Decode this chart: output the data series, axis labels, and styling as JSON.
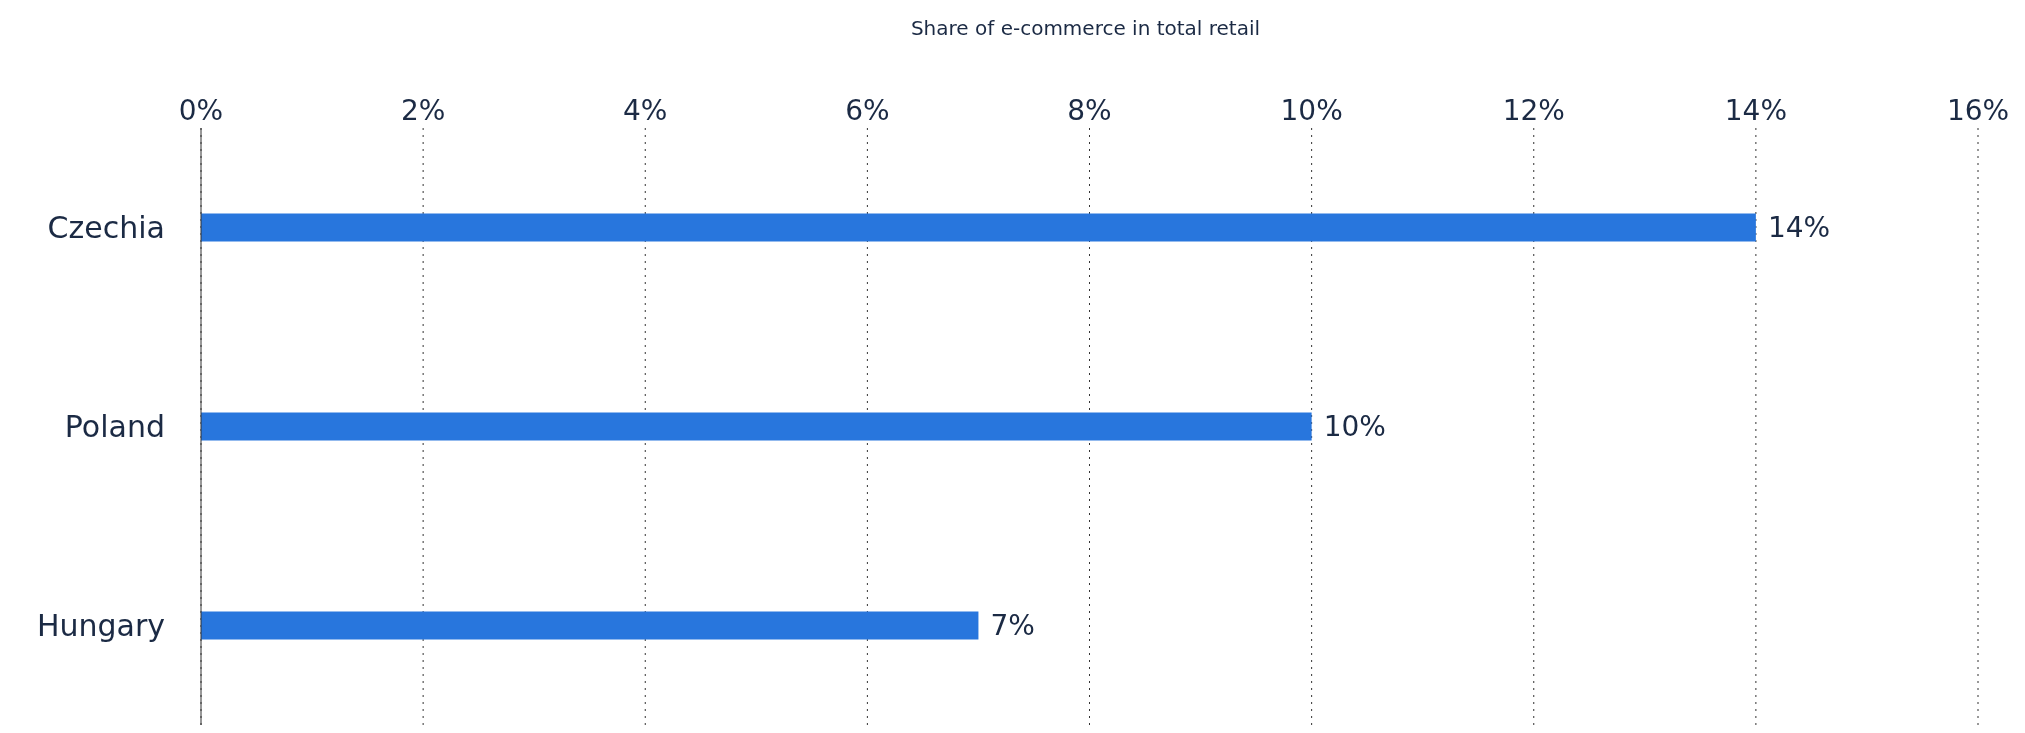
{
  "chart_data": {
    "type": "bar",
    "orientation": "horizontal",
    "xlabel": "Share of e-commerce in total retail",
    "categories": [
      "Czechia",
      "Poland",
      "Hungary"
    ],
    "values": [
      14,
      10,
      7
    ],
    "color": "#2876dd",
    "value_labels": [
      "14%",
      "10%",
      "7%"
    ],
    "xlim": [
      0,
      16
    ],
    "xticks": [
      {
        "value": 0,
        "label": "0%"
      },
      {
        "value": 2,
        "label": "2%"
      },
      {
        "value": 4,
        "label": "4%"
      },
      {
        "value": 6,
        "label": "6%"
      },
      {
        "value": 8,
        "label": "8%"
      },
      {
        "value": 10,
        "label": "10%"
      },
      {
        "value": 12,
        "label": "12%"
      },
      {
        "value": 14,
        "label": "14%"
      },
      {
        "value": 16,
        "label": "16%"
      }
    ],
    "grid": "x",
    "legend": false
  }
}
